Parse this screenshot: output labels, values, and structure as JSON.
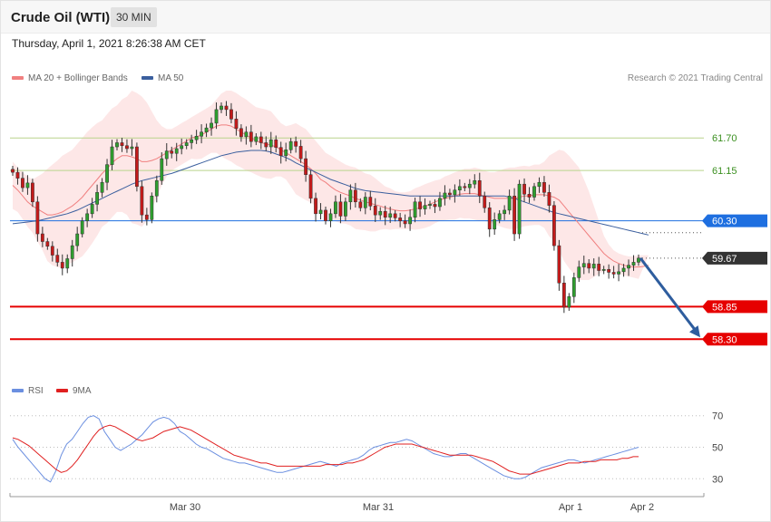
{
  "header": {
    "title": "Crude Oil (WTI)",
    "interval": "30 MIN"
  },
  "date_label": "Thursday, April 1, 2021 8:26:38 AM CET",
  "legend": {
    "ma20": "MA 20 + Bollinger Bands",
    "ma50": "MA 50",
    "rsi": "RSI",
    "rsi_ma": "9MA"
  },
  "copyright": "Research © 2021 Trading Central",
  "colors": {
    "ma20": "#f08080",
    "ma50": "#3b5f9e",
    "bollinger_fill": "#fde3e3",
    "bull": "#2e9e2e",
    "bear": "#c41a1a",
    "resistance": "#b9d48c",
    "pivot": "#1e6fe0",
    "support": "#e60000",
    "arrow": "#2e5d9e",
    "rsi": "#6b8fe0",
    "rsi_ma": "#e02020"
  },
  "chart_data": [
    {
      "type": "candlestick",
      "instrument": "Crude Oil (WTI)",
      "interval": "30 MIN",
      "ylim": [
        57.6,
        62.5
      ],
      "x_ticks": [
        "Mar 30",
        "Mar 31",
        "Apr 1",
        "Apr 2"
      ],
      "levels": [
        {
          "value": 61.7,
          "label": "61.70",
          "kind": "resistance"
        },
        {
          "value": 61.15,
          "label": "61.15",
          "kind": "resistance"
        },
        {
          "value": 60.3,
          "label": "60.30",
          "kind": "pivot"
        },
        {
          "value": 59.67,
          "label": "59.67",
          "kind": "last"
        },
        {
          "value": 58.85,
          "label": "58.85",
          "kind": "support"
        },
        {
          "value": 58.3,
          "label": "58.30",
          "kind": "support"
        }
      ],
      "forecast_arrow": {
        "from": 59.67,
        "to": 58.3
      },
      "close": [
        61.12,
        61.02,
        60.86,
        60.94,
        60.62,
        60.08,
        59.95,
        59.87,
        59.72,
        59.6,
        59.5,
        59.66,
        59.88,
        60.08,
        60.3,
        60.42,
        60.58,
        60.78,
        60.95,
        61.25,
        61.55,
        61.62,
        61.57,
        61.52,
        61.55,
        60.88,
        60.4,
        60.32,
        60.72,
        60.98,
        61.35,
        61.48,
        61.44,
        61.52,
        61.57,
        61.62,
        61.67,
        61.73,
        61.8,
        61.87,
        61.95,
        62.18,
        62.24,
        62.18,
        62.02,
        61.86,
        61.72,
        61.8,
        61.64,
        61.72,
        61.62,
        61.55,
        61.67,
        61.54,
        61.4,
        61.5,
        61.64,
        61.56,
        61.35,
        61.08,
        60.68,
        60.42,
        60.48,
        60.3,
        60.42,
        60.62,
        60.38,
        60.62,
        60.82,
        60.62,
        60.52,
        60.7,
        60.55,
        60.4,
        60.46,
        60.36,
        60.42,
        60.35,
        60.3,
        60.25,
        60.36,
        60.62,
        60.5,
        60.56,
        60.58,
        60.54,
        60.68,
        60.77,
        60.74,
        60.82,
        60.88,
        60.86,
        60.92,
        60.98,
        60.72,
        60.52,
        60.16,
        60.32,
        60.42,
        60.48,
        60.72,
        60.08,
        60.92,
        60.75,
        60.7,
        60.88,
        60.95,
        60.78,
        60.56,
        59.88,
        59.25,
        58.84,
        59.02,
        59.34,
        59.52,
        59.58,
        59.5,
        59.57,
        59.46,
        59.48,
        59.43,
        59.4,
        59.44,
        59.5,
        59.55,
        59.6,
        59.67
      ],
      "bb_upper": [
        61.3,
        61.2,
        61.12,
        61.05,
        61.0,
        61.05,
        61.1,
        61.18,
        61.25,
        61.32,
        61.4,
        61.45,
        61.5,
        61.6,
        61.7,
        61.8,
        61.88,
        61.95,
        62.0,
        62.1,
        62.2,
        62.25,
        62.35,
        62.4,
        62.5,
        62.46,
        62.4,
        62.3,
        62.15,
        62.0,
        61.9,
        61.85,
        61.85,
        61.9,
        61.95,
        62.0,
        62.05,
        62.1,
        62.15,
        62.2,
        62.25,
        62.35,
        62.45,
        62.5,
        62.5,
        62.46,
        62.4,
        62.35,
        62.28,
        62.22,
        62.2,
        62.18,
        62.15,
        62.05,
        61.95,
        61.9,
        61.92,
        61.95,
        61.9,
        61.85,
        61.75,
        61.65,
        61.55,
        61.45,
        61.4,
        61.35,
        61.3,
        61.25,
        61.22,
        61.2,
        61.15,
        61.1,
        61.08,
        61.02,
        60.95,
        60.88,
        60.85,
        60.8,
        60.78,
        60.78,
        60.8,
        60.85,
        60.88,
        60.92,
        60.95,
        60.98,
        61.0,
        61.05,
        61.08,
        61.12,
        61.15,
        61.18,
        61.18,
        61.2,
        61.18,
        61.15,
        61.12,
        61.12,
        61.15,
        61.18,
        61.2,
        61.2,
        61.22,
        61.23,
        61.22,
        61.25,
        61.25,
        61.3,
        61.4,
        61.45,
        61.5,
        61.48,
        61.4,
        61.3,
        61.2,
        61.0,
        60.8,
        60.55,
        60.3,
        60.05,
        59.9,
        59.8,
        59.75,
        59.72,
        59.7,
        59.7,
        59.72,
        59.72,
        59.72
      ],
      "ma20": [
        60.9,
        60.82,
        60.72,
        60.62,
        60.55,
        60.5,
        60.45,
        60.4,
        60.4,
        60.42,
        60.45,
        60.5,
        60.55,
        60.62,
        60.7,
        60.8,
        60.9,
        61.0,
        61.1,
        61.18,
        61.28,
        61.35,
        61.4,
        61.4,
        61.38,
        61.35,
        61.3,
        61.3,
        61.32,
        61.35,
        61.4,
        61.45,
        61.5,
        61.55,
        61.6,
        61.65,
        61.7,
        61.72,
        61.75,
        61.8,
        61.85,
        61.9,
        61.92,
        61.92,
        61.9,
        61.85,
        61.8,
        61.75,
        61.7,
        61.65,
        61.62,
        61.6,
        61.58,
        61.55,
        61.5,
        61.45,
        61.4,
        61.35,
        61.3,
        61.25,
        61.18,
        61.1,
        61.0,
        60.95,
        60.88,
        60.82,
        60.78,
        60.75,
        60.72,
        60.68,
        60.65,
        60.62,
        60.6,
        60.57,
        60.55,
        60.52,
        60.5,
        60.48,
        60.47,
        60.47,
        60.48,
        60.5,
        60.52,
        60.55,
        60.58,
        60.62,
        60.65,
        60.68,
        60.7,
        60.72,
        60.75,
        60.76,
        60.76,
        60.76,
        60.74,
        60.72,
        60.7,
        60.68,
        60.68,
        60.68,
        60.68,
        60.68,
        60.7,
        60.72,
        60.72,
        60.74,
        60.74,
        60.74,
        60.72,
        60.7,
        60.65,
        60.55,
        60.45,
        60.35,
        60.25,
        60.15,
        60.05,
        59.95,
        59.85,
        59.75,
        59.68,
        59.62,
        59.58,
        59.55,
        59.53,
        59.52,
        59.52,
        59.53,
        59.55
      ],
      "bb_lower": [
        60.5,
        60.45,
        60.33,
        60.2,
        60.1,
        59.95,
        59.8,
        59.62,
        59.55,
        59.52,
        59.5,
        59.55,
        59.6,
        59.65,
        59.7,
        59.8,
        59.92,
        60.05,
        60.2,
        60.26,
        60.36,
        60.45,
        60.45,
        60.4,
        60.26,
        60.24,
        60.2,
        60.3,
        60.5,
        60.7,
        60.9,
        61.05,
        61.15,
        61.2,
        61.25,
        61.3,
        61.35,
        61.34,
        61.35,
        61.4,
        61.45,
        61.45,
        61.39,
        61.34,
        61.3,
        61.24,
        61.2,
        61.15,
        61.12,
        61.08,
        61.04,
        61.02,
        61.01,
        61.05,
        61.05,
        61.0,
        60.88,
        60.75,
        60.7,
        60.65,
        60.61,
        60.55,
        60.45,
        60.45,
        60.36,
        60.29,
        60.26,
        60.25,
        60.22,
        60.16,
        60.15,
        60.14,
        60.12,
        60.12,
        60.15,
        60.16,
        60.15,
        60.16,
        60.16,
        60.16,
        60.16,
        60.15,
        60.16,
        60.18,
        60.21,
        60.26,
        60.3,
        60.31,
        60.32,
        60.32,
        60.35,
        60.34,
        60.34,
        60.32,
        60.3,
        60.29,
        60.28,
        60.24,
        60.21,
        60.18,
        60.16,
        60.16,
        60.18,
        60.21,
        60.22,
        60.23,
        60.23,
        60.18,
        60.04,
        59.95,
        59.8,
        59.62,
        59.5,
        59.4,
        59.3,
        59.3,
        59.3,
        59.35,
        59.4,
        59.45,
        59.46,
        59.44,
        59.41,
        59.38,
        59.36,
        59.34,
        59.32,
        59.34,
        59.38
      ],
      "ma50": [
        60.25,
        60.26,
        60.27,
        60.28,
        60.29,
        60.3,
        60.32,
        60.34,
        60.36,
        60.38,
        60.4,
        60.42,
        60.45,
        60.48,
        60.52,
        60.56,
        60.6,
        60.64,
        60.68,
        60.72,
        60.76,
        60.8,
        60.84,
        60.88,
        60.92,
        60.95,
        60.98,
        61.0,
        61.02,
        61.04,
        61.06,
        61.08,
        61.1,
        61.13,
        61.16,
        61.19,
        61.22,
        61.25,
        61.28,
        61.31,
        61.34,
        61.37,
        61.4,
        61.42,
        61.44,
        61.46,
        61.47,
        61.48,
        61.49,
        61.49,
        61.49,
        61.48,
        61.46,
        61.43,
        61.4,
        61.37,
        61.33,
        61.28,
        61.24,
        61.2,
        61.16,
        61.12,
        61.08,
        61.04,
        61.0,
        60.97,
        60.94,
        60.91,
        60.88,
        60.85,
        60.83,
        60.81,
        60.8,
        60.79,
        60.78,
        60.77,
        60.76,
        60.75,
        60.74,
        60.73,
        60.72,
        60.72,
        60.72,
        60.72,
        60.72,
        60.72,
        60.72,
        60.72,
        60.72,
        60.72,
        60.72,
        60.72,
        60.72,
        60.72,
        60.72,
        60.72,
        60.72,
        60.72,
        60.72,
        60.72,
        60.7,
        60.68,
        60.65,
        60.62,
        60.59,
        60.56,
        60.53,
        60.5,
        60.47,
        60.44,
        60.42,
        60.4,
        60.38,
        60.36,
        60.34,
        60.32,
        60.3,
        60.28,
        60.26,
        60.24,
        60.22,
        60.2,
        60.18,
        60.16,
        60.14,
        60.12,
        60.1,
        60.08,
        60.06
      ]
    },
    {
      "type": "line",
      "name": "RSI",
      "ylim": [
        25,
        75
      ],
      "y_ticks": [
        70,
        50,
        30
      ],
      "series": [
        {
          "name": "RSI",
          "values": [
            55,
            50,
            46,
            42,
            38,
            34,
            30,
            28,
            35,
            45,
            52,
            55,
            60,
            65,
            69,
            70,
            68,
            60,
            55,
            50,
            48,
            50,
            52,
            55,
            58,
            62,
            66,
            68,
            69,
            68,
            65,
            60,
            58,
            55,
            52,
            50,
            49,
            47,
            45,
            43,
            42,
            41,
            40,
            40,
            39,
            38,
            37,
            36,
            35,
            34,
            34,
            35,
            36,
            37,
            38,
            39,
            40,
            41,
            40,
            39,
            38,
            40,
            41,
            42,
            43,
            45,
            48,
            50,
            51,
            52,
            53,
            53,
            54,
            55,
            54,
            52,
            50,
            48,
            46,
            45,
            44,
            44,
            45,
            46,
            46,
            44,
            42,
            40,
            38,
            36,
            34,
            32,
            31,
            30,
            30,
            31,
            33,
            35,
            37,
            38,
            39,
            40,
            41,
            42,
            42,
            41,
            40,
            41,
            42,
            43,
            44,
            45,
            46,
            47,
            48,
            49,
            50
          ]
        },
        {
          "name": "9MA",
          "values": [
            56,
            55,
            53,
            51,
            48,
            45,
            42,
            39,
            36,
            34,
            35,
            38,
            42,
            47,
            52,
            57,
            61,
            63,
            64,
            63,
            61,
            59,
            57,
            55,
            54,
            55,
            56,
            58,
            60,
            61,
            62,
            63,
            62,
            61,
            59,
            57,
            55,
            53,
            51,
            49,
            47,
            45,
            44,
            43,
            42,
            41,
            40,
            40,
            39,
            38,
            38,
            38,
            38,
            38,
            38,
            38,
            38,
            38,
            39,
            39,
            39,
            39,
            40,
            40,
            41,
            42,
            44,
            46,
            48,
            50,
            51,
            52,
            52,
            52,
            52,
            51,
            50,
            49,
            48,
            47,
            46,
            45,
            45,
            45,
            45,
            45,
            44,
            43,
            42,
            41,
            39,
            37,
            35,
            34,
            33,
            33,
            33,
            34,
            35,
            36,
            37,
            38,
            39,
            40,
            40,
            40,
            41,
            41,
            41,
            42,
            42,
            42,
            42,
            43,
            43,
            44,
            44
          ]
        }
      ]
    }
  ]
}
